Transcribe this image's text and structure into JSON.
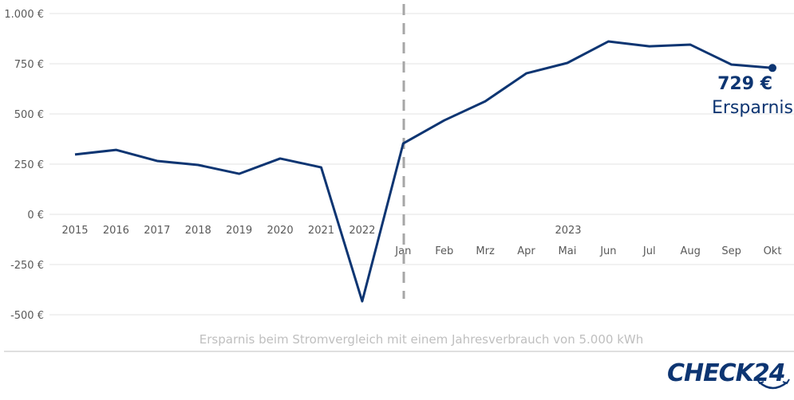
{
  "chart_data": {
    "type": "line",
    "title": "Ersparnis beim Stromvergleich mit einem Jahresverbrauch von 5.000 kWh",
    "xlabel": "",
    "ylabel": "",
    "ylim": [
      -500,
      1000
    ],
    "yticks": [
      1000,
      750,
      500,
      250,
      0,
      -250,
      -500
    ],
    "ytick_labels": [
      "1.000 €",
      "750 €",
      "500 €",
      "250 €",
      "0 €",
      "-250 €",
      "-500 €"
    ],
    "grid": true,
    "categories": [
      "2015",
      "2016",
      "2017",
      "2018",
      "2019",
      "2020",
      "2021",
      "2022",
      "Jan",
      "Feb",
      "Mrz",
      "Apr",
      "Mai",
      "Jun",
      "Jul",
      "Aug",
      "Sep",
      "Okt"
    ],
    "group_label": "2023",
    "series": [
      {
        "name": "Ersparnis",
        "color": "#0d3572",
        "values": [
          298,
          321,
          266,
          246,
          202,
          278,
          234,
          -433,
          353,
          468,
          563,
          702,
          754,
          861,
          837,
          845,
          746,
          729
        ]
      }
    ],
    "annotation": {
      "value": "729 €",
      "label": "Ersparnis"
    }
  },
  "brand": {
    "logo_text": "CHECK24",
    "color": "#0d3572"
  }
}
